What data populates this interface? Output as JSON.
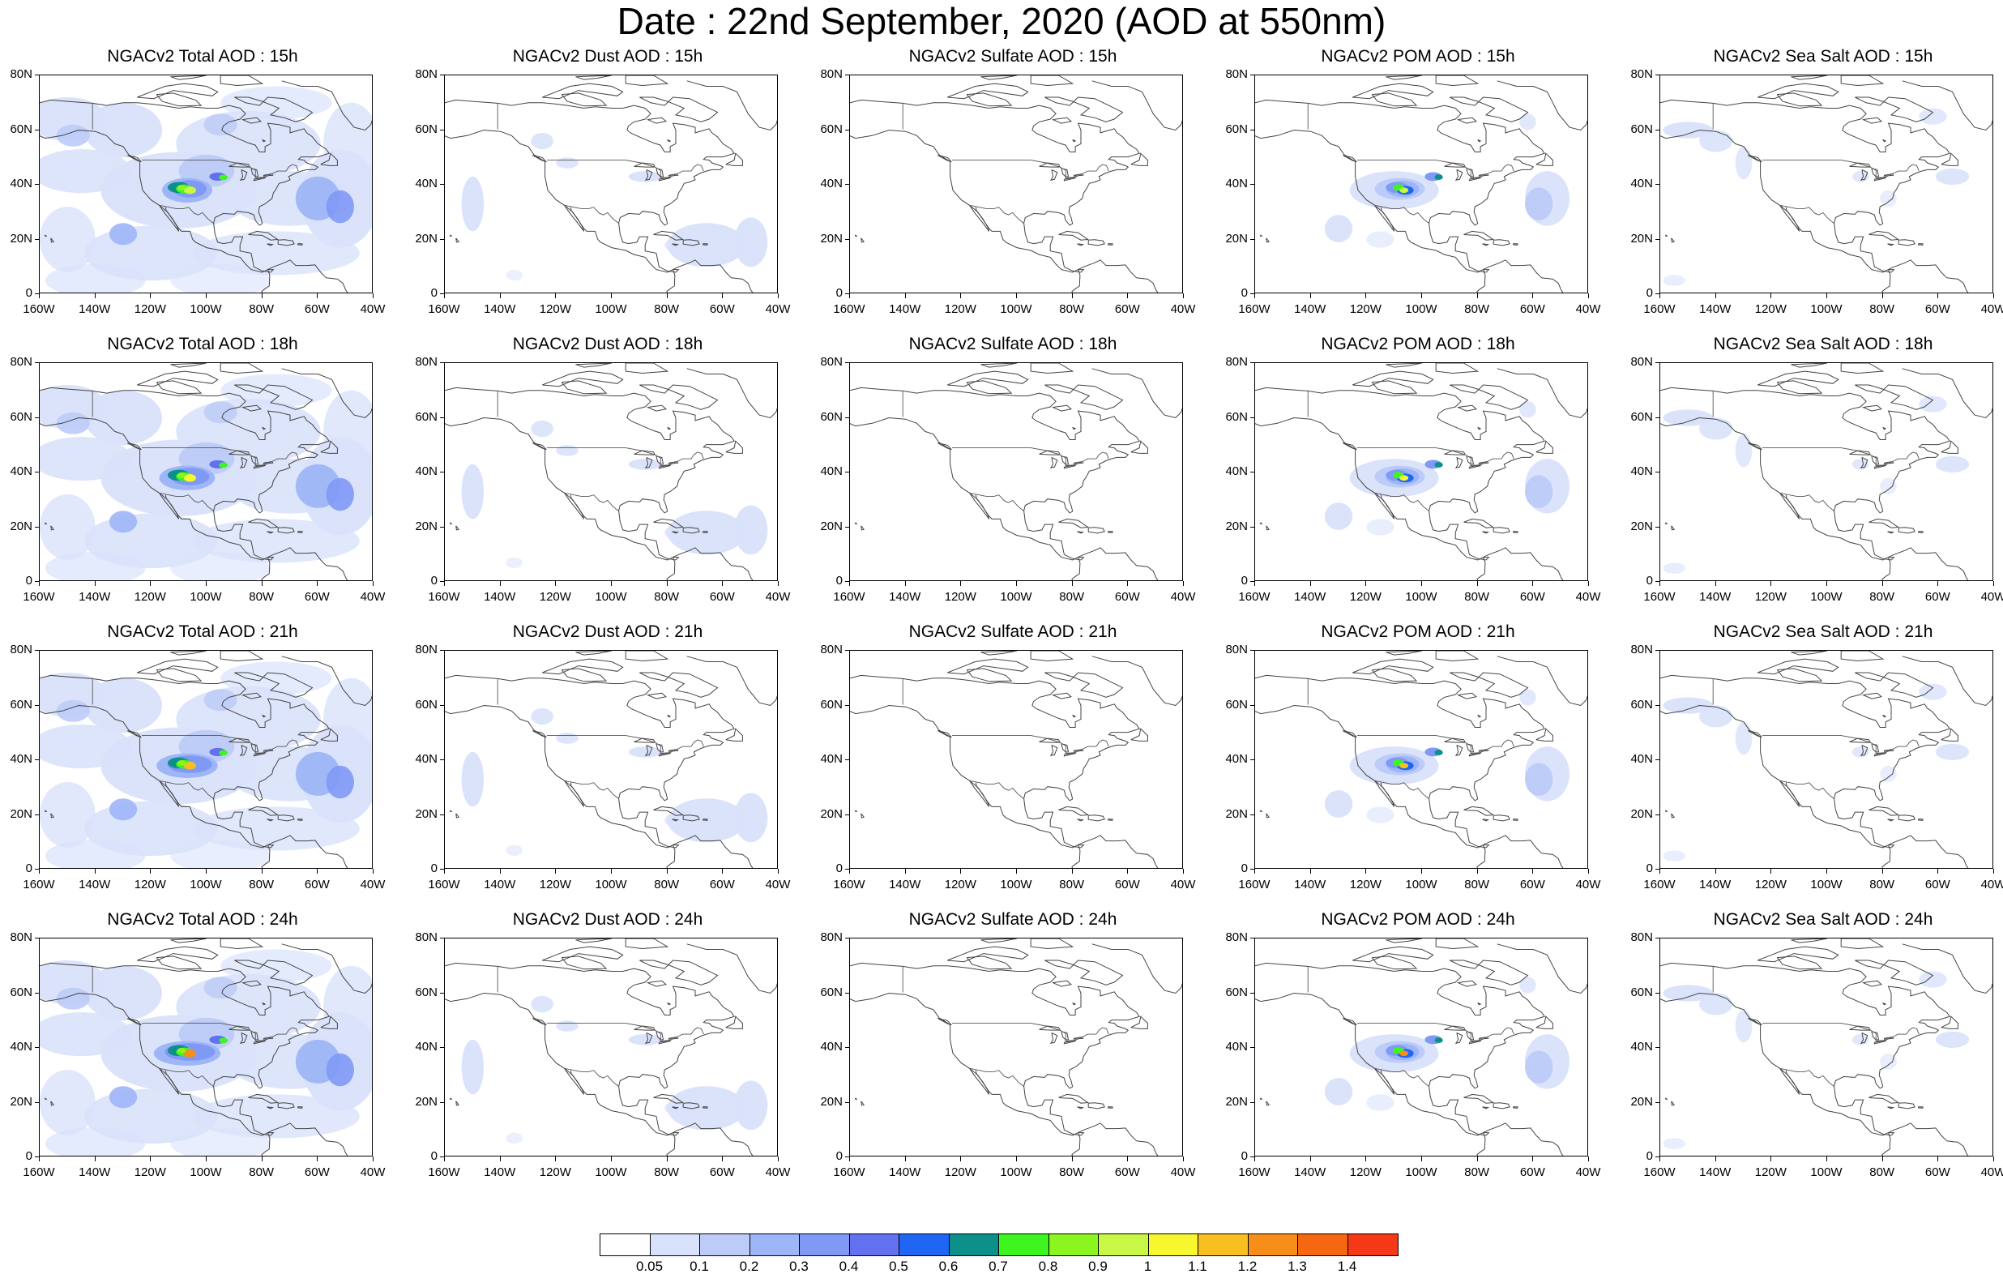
{
  "title": "Date : 22nd  September, 2020 (AOD at 550nm)",
  "colors": {
    "levels": [
      "#ffffff",
      "#d9e2fb",
      "#bccbf8",
      "#9eb5f7",
      "#8099f5",
      "#6370f0",
      "#1f66f5",
      "#0d8f8a",
      "#3ef520",
      "#8cf51f",
      "#c8f745",
      "#f7f730",
      "#f7c020",
      "#f78e19",
      "#f56711",
      "#f53817"
    ],
    "coast": "#444444"
  },
  "colorbar": {
    "labels": [
      "0.05",
      "0.1",
      "0.2",
      "0.3",
      "0.4",
      "0.5",
      "0.6",
      "0.7",
      "0.8",
      "0.9",
      "1",
      "1.1",
      "1.2",
      "1.3",
      "1.4"
    ]
  },
  "axes": {
    "lat_labels": [
      "80N",
      "60N",
      "40N",
      "20N",
      "0"
    ],
    "lon_labels": [
      "160W",
      "140W",
      "120W",
      "100W",
      "80W",
      "60W",
      "40W"
    ]
  },
  "panels": [
    {
      "title": "NGACv2 Total AOD : 15h",
      "field": "total"
    },
    {
      "title": "NGACv2 Dust AOD : 15h",
      "field": "dust"
    },
    {
      "title": "NGACv2 Sulfate AOD : 15h",
      "field": "sulfate"
    },
    {
      "title": "NGACv2 POM AOD : 15h",
      "field": "pom"
    },
    {
      "title": "NGACv2 Sea Salt AOD : 15h",
      "field": "seasalt"
    },
    {
      "title": "NGACv2 Total AOD : 18h",
      "field": "total"
    },
    {
      "title": "NGACv2 Dust AOD : 18h",
      "field": "dust"
    },
    {
      "title": "NGACv2 Sulfate AOD : 18h",
      "field": "sulfate"
    },
    {
      "title": "NGACv2 POM AOD : 18h",
      "field": "pom"
    },
    {
      "title": "NGACv2 Sea Salt AOD : 18h",
      "field": "seasalt"
    },
    {
      "title": "NGACv2 Total AOD : 21h",
      "field": "total"
    },
    {
      "title": "NGACv2 Dust AOD : 21h",
      "field": "dust"
    },
    {
      "title": "NGACv2 Sulfate AOD : 21h",
      "field": "sulfate"
    },
    {
      "title": "NGACv2 POM AOD : 21h",
      "field": "pom"
    },
    {
      "title": "NGACv2 Sea Salt AOD : 21h",
      "field": "seasalt"
    },
    {
      "title": "NGACv2 Total AOD : 24h",
      "field": "total"
    },
    {
      "title": "NGACv2 Dust AOD : 24h",
      "field": "dust"
    },
    {
      "title": "NGACv2 Sulfate AOD : 24h",
      "field": "sulfate"
    },
    {
      "title": "NGACv2 POM AOD : 24h",
      "field": "pom"
    },
    {
      "title": "NGACv2 Sea Salt  AOD : 24h",
      "field": "seasalt"
    }
  ]
}
